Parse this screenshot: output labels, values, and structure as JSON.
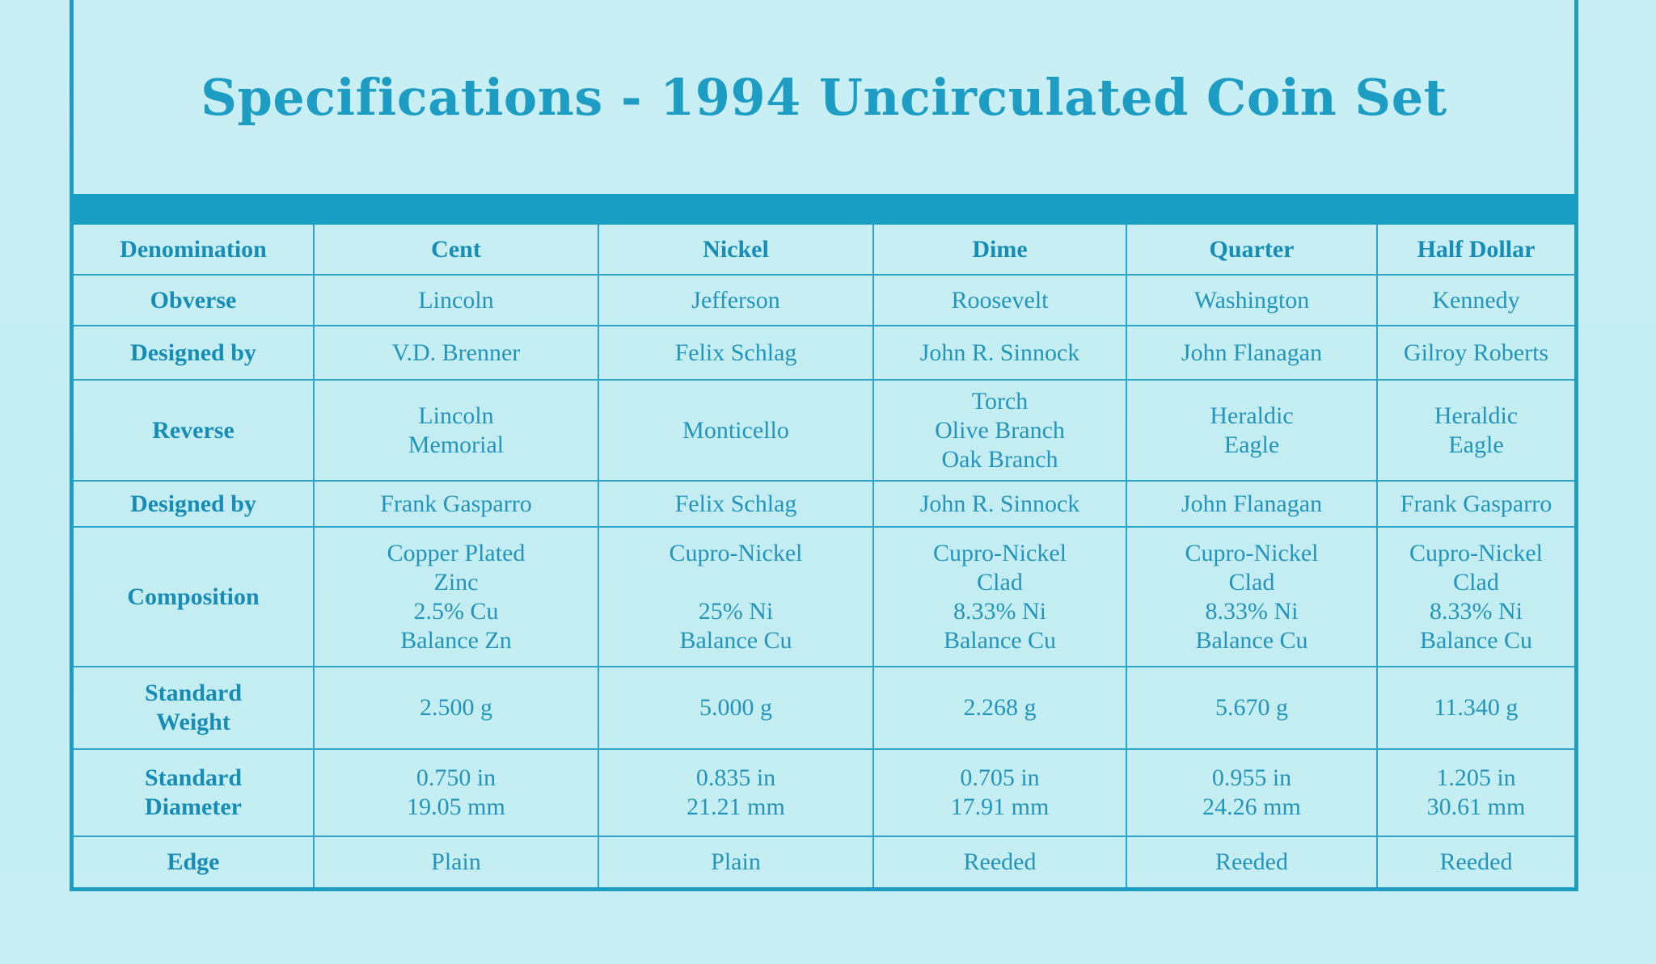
{
  "title": "Specifications - 1994 Uncirculated Coin Set",
  "colors": {
    "background": "#c8eef3",
    "accent": "#1d9ec0",
    "text": "#2395bb"
  },
  "table": {
    "header": [
      "Denomination",
      "Cent",
      "Nickel",
      "Dime",
      "Quarter",
      "Half  Dollar"
    ],
    "rows": [
      [
        "Obverse",
        "Lincoln",
        "Jefferson",
        "Roosevelt",
        "Washington",
        "Kennedy"
      ],
      [
        "Designed by",
        "V.D. Brenner",
        "Felix Schlag",
        "John R. Sinnock",
        "John Flanagan",
        "Gilroy Roberts"
      ],
      [
        "Reverse",
        "Lincoln\nMemorial",
        "Monticello",
        "Torch\nOlive Branch\nOak Branch",
        "Heraldic\nEagle",
        "Heraldic\nEagle"
      ],
      [
        "Designed by",
        "Frank Gasparro",
        "Felix Schlag",
        "John R. Sinnock",
        "John Flanagan",
        "Frank Gasparro"
      ],
      [
        "Composition",
        "Copper Plated\nZinc\n2.5% Cu\nBalance Zn",
        "Cupro-Nickel\n\n25% Ni\nBalance Cu",
        "Cupro-Nickel\nClad\n8.33% Ni\nBalance Cu",
        "Cupro-Nickel\nClad\n8.33% Ni\nBalance Cu",
        "Cupro-Nickel\nClad\n8.33% Ni\nBalance Cu"
      ],
      [
        "Standard\nWeight",
        "2.500 g",
        "5.000 g",
        "2.268 g",
        "5.670 g",
        "11.340 g"
      ],
      [
        "Standard\nDiameter",
        "0.750 in\n19.05 mm",
        "0.835 in\n21.21 mm",
        "0.705 in\n17.91 mm",
        "0.955 in\n24.26 mm",
        "1.205 in\n30.61 mm"
      ],
      [
        "Edge",
        "Plain",
        "Plain",
        "Reeded",
        "Reeded",
        "Reeded"
      ]
    ]
  }
}
